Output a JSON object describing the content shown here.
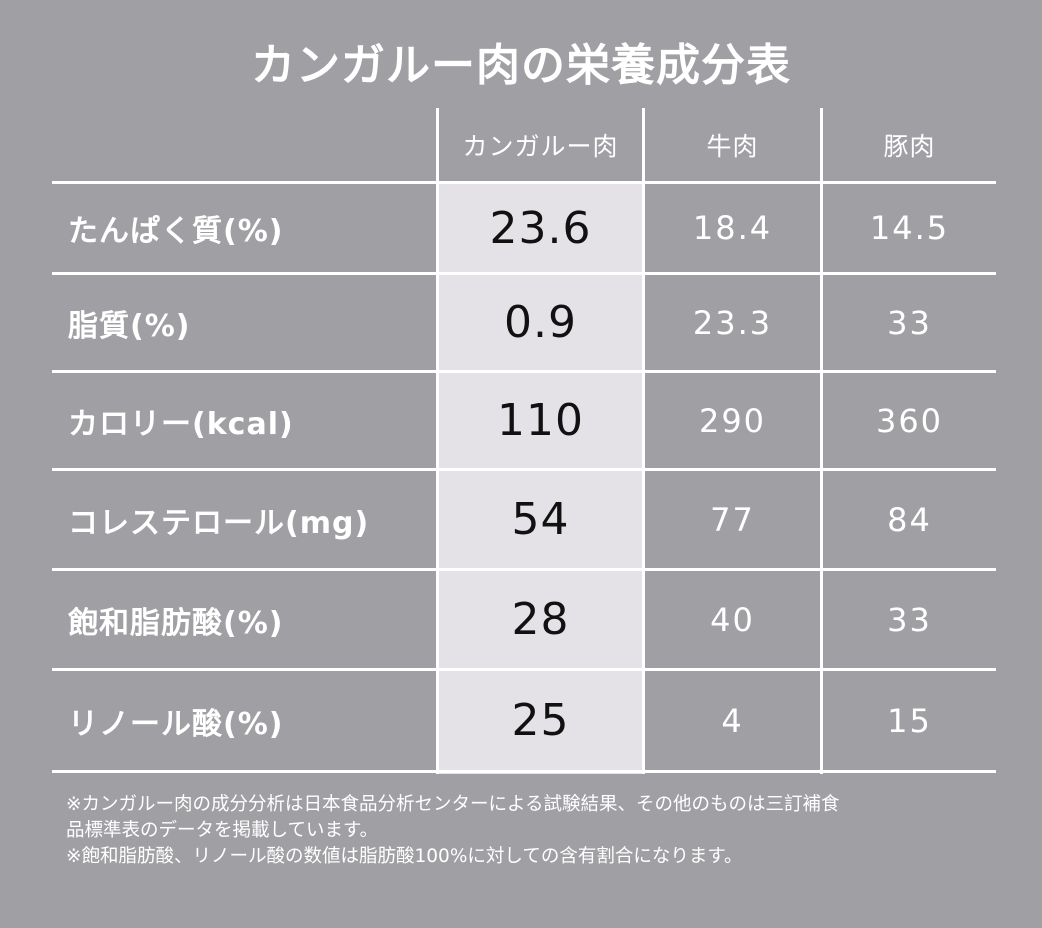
{
  "title": "カンガルー肉の栄養成分表",
  "headers": [
    "カンガルー肉",
    "牛肉",
    "豚肉"
  ],
  "rows": [
    {
      "label": "たんぱく質(%)",
      "values": [
        "23.6",
        "18.4",
        "14.5"
      ]
    },
    {
      "label": "脂質(%)",
      "values": [
        "0.9",
        "23.3",
        "33"
      ]
    },
    {
      "label": "カロリー(kcal)",
      "values": [
        "110",
        "290",
        "360"
      ]
    },
    {
      "label": "コレステロール(mg)",
      "values": [
        "54",
        "77",
        "84"
      ]
    },
    {
      "label": "飽和脂肪酸(%)",
      "values": [
        "28",
        "40",
        "33"
      ]
    },
    {
      "label": "リノール酸(%)",
      "values": [
        "25",
        "4",
        "15"
      ]
    }
  ],
  "notes": [
    "※カンガルー肉の成分分析は日本食品分析センターによる試験結果、その他のものは三訂補食",
    "品標準表のデータを掲載しています。",
    "※飽和脂肪酸、リノール酸の数値は脂肪酸100%に対しての含有割合になります。"
  ],
  "colors": {
    "background": "#a09fa3",
    "highlight_column": "#e4e2e6",
    "lines": "#ffffff"
  }
}
